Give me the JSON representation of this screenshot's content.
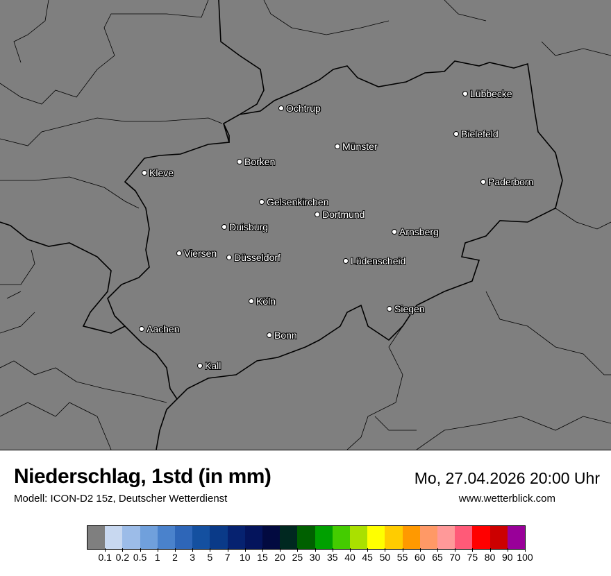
{
  "header": {
    "title": "Niederschlag, 1std (in mm)",
    "subtitle": "Modell: ICON-D2 15z, Deutscher Wetterdienst",
    "datetime": "Mo, 27.04.2026 20:00 Uhr",
    "website": "www.wetterblick.com"
  },
  "map": {
    "background_color": "#7f7f7f",
    "cities": [
      {
        "name": "Ochtrup"
      },
      {
        "name": "Lübbecke"
      },
      {
        "name": "Bielefeld"
      },
      {
        "name": "Münster"
      },
      {
        "name": "Borken"
      },
      {
        "name": "Kleve"
      },
      {
        "name": "Paderborn"
      },
      {
        "name": "Gelsenkirchen"
      },
      {
        "name": "Dortmund"
      },
      {
        "name": "Duisburg"
      },
      {
        "name": "Arnsberg"
      },
      {
        "name": "Viersen"
      },
      {
        "name": "Düsseldorf"
      },
      {
        "name": "Lüdenscheid"
      },
      {
        "name": "Köln"
      },
      {
        "name": "Siegen"
      },
      {
        "name": "Aachen"
      },
      {
        "name": "Bonn"
      },
      {
        "name": "Kall"
      }
    ]
  },
  "legend": {
    "labels": [
      "0.1",
      "0.2",
      "0.5",
      "1",
      "2",
      "3",
      "5",
      "7",
      "10",
      "15",
      "20",
      "25",
      "30",
      "35",
      "40",
      "45",
      "50",
      "55",
      "60",
      "65",
      "70",
      "75",
      "80",
      "90",
      "100"
    ],
    "colors": [
      "#7f7f7f",
      "#c8d8f0",
      "#9cbce8",
      "#70a0dc",
      "#4a82cc",
      "#2e66b8",
      "#1450a0",
      "#0a3a88",
      "#062270",
      "#04145c",
      "#020a40",
      "#002820",
      "#006000",
      "#00a000",
      "#44cc00",
      "#aae000",
      "#ffff00",
      "#ffcc00",
      "#ff9900",
      "#ff9966",
      "#ff9999",
      "#ff5a78",
      "#ff0000",
      "#cc0000",
      "#990099"
    ]
  }
}
